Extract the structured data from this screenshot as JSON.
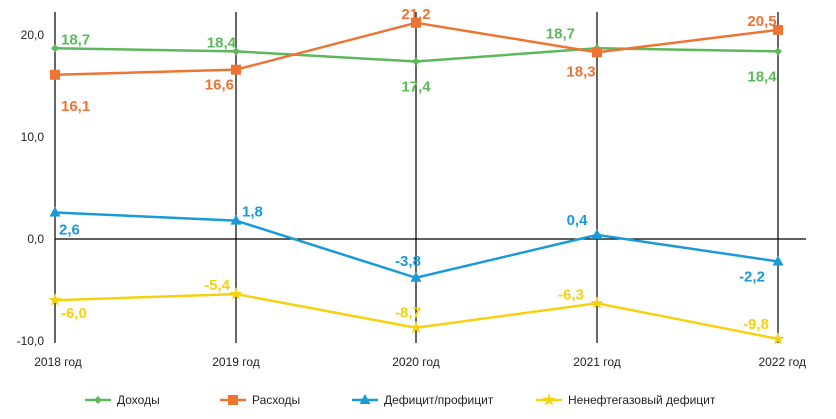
{
  "chart_data": {
    "type": "line",
    "categories": [
      "2018 год",
      "2019 год",
      "2020 год",
      "2021 год",
      "2022 год"
    ],
    "yticks": [
      "-10,0",
      "0,0",
      "10,0",
      "20,0"
    ],
    "ylim": [
      -10,
      21.5
    ],
    "grid": "vertical lines at categories; horizontal zero line",
    "legend_position": "bottom",
    "series": [
      {
        "name": "Доходы",
        "color": "#5cb85c",
        "marker": "diamond",
        "values": [
          18.7,
          18.4,
          17.4,
          18.7,
          18.4
        ],
        "labels": [
          "18,7",
          "18,4",
          "17,4",
          "18,7",
          "18,4"
        ]
      },
      {
        "name": "Расходы",
        "color": "#ee7434",
        "marker": "square",
        "values": [
          16.1,
          16.6,
          21.2,
          18.3,
          20.5
        ],
        "labels": [
          "16,1",
          "16,6",
          "21,2",
          "18,3",
          "20,5"
        ]
      },
      {
        "name": "Дефицит/профицит",
        "color": "#1a9ad6",
        "marker": "triangle",
        "values": [
          2.6,
          1.8,
          -3.8,
          0.4,
          -2.2
        ],
        "labels": [
          "2,6",
          "1,8",
          "-3,8",
          "0,4",
          "-2,2"
        ]
      },
      {
        "name": "Ненефтегазовый дефицит",
        "color": "#f5d20f",
        "marker": "star",
        "values": [
          -6.0,
          -5.4,
          -8.7,
          -6.3,
          -9.8
        ],
        "labels": [
          "-6,0",
          "-5,4",
          "-8,7",
          "-6,3",
          "-9,8"
        ]
      }
    ]
  }
}
